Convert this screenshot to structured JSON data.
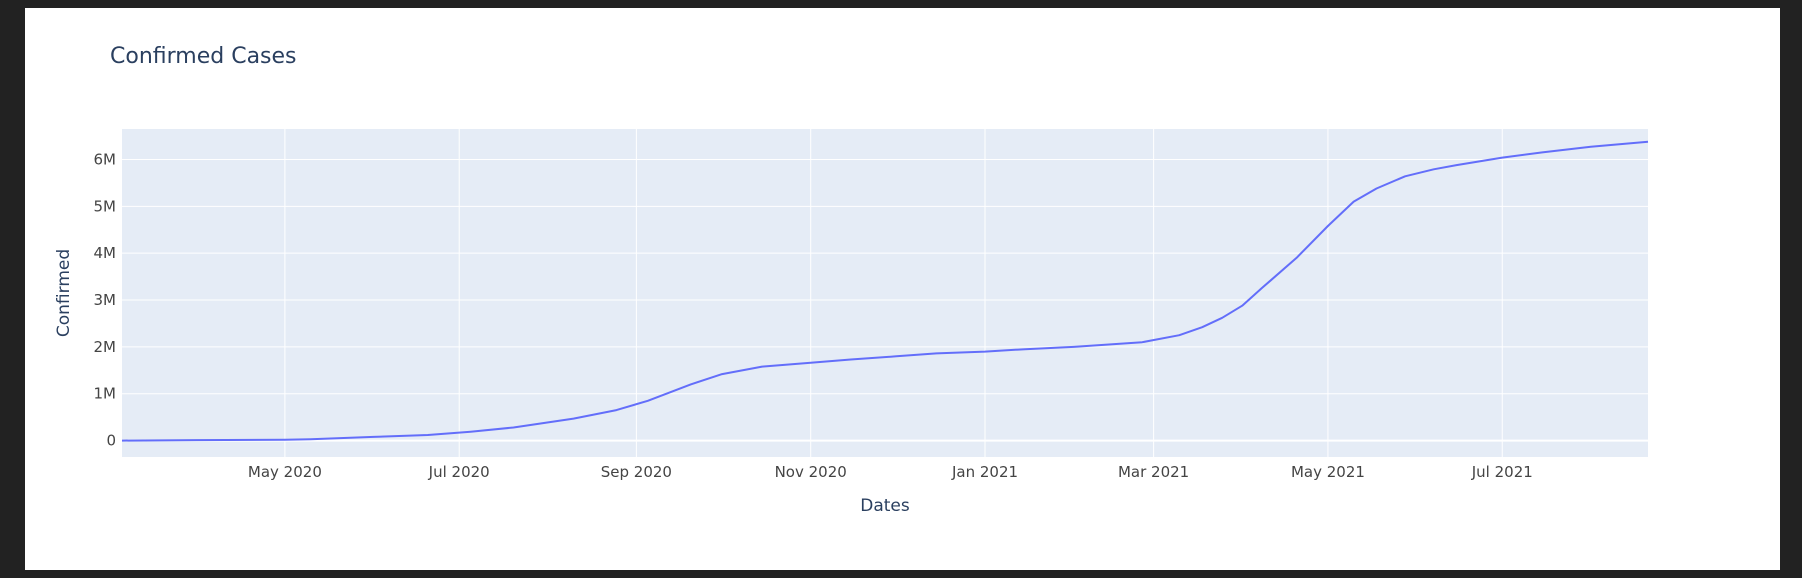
{
  "chart_data": {
    "type": "line",
    "title": "Confirmed Cases",
    "xlabel": "Dates",
    "ylabel": "Confirmed",
    "x_range": [
      "2020-03-05",
      "2021-08-21"
    ],
    "y_range": [
      -350000,
      6650000
    ],
    "x_ticks": [
      {
        "date": "2020-05-01",
        "label": "May 2020"
      },
      {
        "date": "2020-07-01",
        "label": "Jul 2020"
      },
      {
        "date": "2020-09-01",
        "label": "Sep 2020"
      },
      {
        "date": "2020-11-01",
        "label": "Nov 2020"
      },
      {
        "date": "2021-01-01",
        "label": "Jan 2021"
      },
      {
        "date": "2021-03-01",
        "label": "Mar 2021"
      },
      {
        "date": "2021-05-01",
        "label": "May 2021"
      },
      {
        "date": "2021-07-01",
        "label": "Jul 2021"
      }
    ],
    "y_ticks": [
      {
        "value": 0,
        "label": "0"
      },
      {
        "value": 1000000,
        "label": "1M"
      },
      {
        "value": 2000000,
        "label": "2M"
      },
      {
        "value": 3000000,
        "label": "3M"
      },
      {
        "value": 4000000,
        "label": "4M"
      },
      {
        "value": 5000000,
        "label": "5M"
      },
      {
        "value": 6000000,
        "label": "6M"
      }
    ],
    "grid": true,
    "colors": {
      "line": "#636efa",
      "plot_bg": "#e5ecf6",
      "grid": "#ffffff"
    },
    "series": [
      {
        "x": [
          "2020-03-05",
          "2020-03-31",
          "2020-05-01",
          "2020-05-10",
          "2020-06-01",
          "2020-06-20",
          "2020-07-05",
          "2020-07-20",
          "2020-08-10",
          "2020-08-25",
          "2020-09-05",
          "2020-09-20",
          "2020-10-01",
          "2020-10-15",
          "2020-11-01",
          "2020-11-15",
          "2020-12-01",
          "2020-12-15",
          "2021-01-01",
          "2021-01-15",
          "2021-02-01",
          "2021-02-25",
          "2021-03-10",
          "2021-03-18",
          "2021-03-25",
          "2021-04-01",
          "2021-04-08",
          "2021-04-20",
          "2021-05-01",
          "2021-05-10",
          "2021-05-18",
          "2021-05-28",
          "2021-06-07",
          "2021-06-15",
          "2021-07-01",
          "2021-07-15",
          "2021-08-01",
          "2021-08-21"
        ],
        "y": [
          0,
          10000,
          20000,
          30000,
          80000,
          120000,
          190000,
          280000,
          470000,
          650000,
          850000,
          1200000,
          1420000,
          1580000,
          1660000,
          1730000,
          1800000,
          1860000,
          1900000,
          1950000,
          2000000,
          2100000,
          2250000,
          2420000,
          2620000,
          2880000,
          3260000,
          3900000,
          4580000,
          5100000,
          5380000,
          5640000,
          5790000,
          5880000,
          6040000,
          6150000,
          6270000,
          6380000
        ]
      }
    ]
  }
}
